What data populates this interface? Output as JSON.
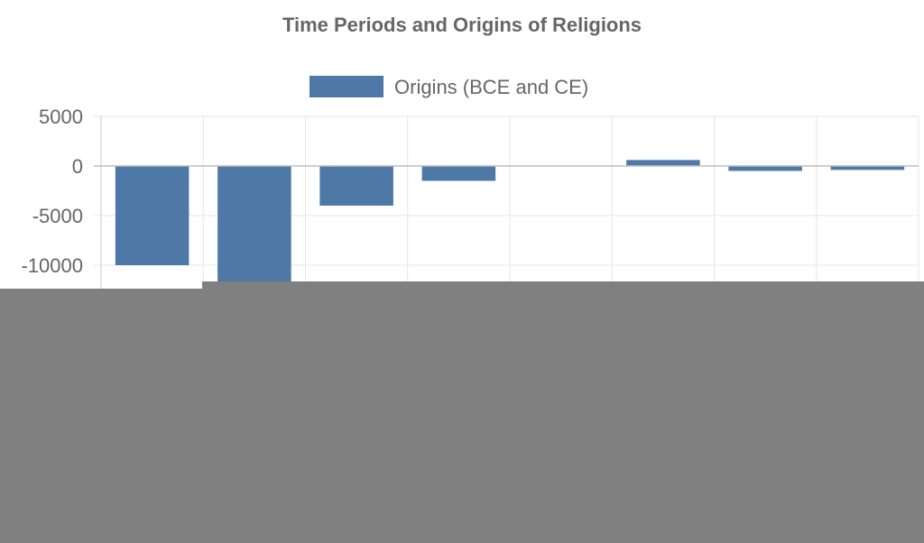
{
  "chart_data": {
    "type": "bar",
    "title": "Time Periods and Origins of Religions",
    "categories": [
      "",
      "",
      "",
      "",
      "",
      "",
      "",
      ""
    ],
    "series": [
      {
        "name": "Origins (BCE and CE)",
        "color": "#4e79a7",
        "values": [
          -10000,
          -12000,
          -4000,
          -1500,
          0,
          600,
          -500,
          -400
        ]
      }
    ],
    "y_ticks": [
      "5000",
      "0",
      "-5000",
      "-10000"
    ],
    "ylim": [
      -12000,
      5000
    ],
    "grid": true,
    "legend_position": "top"
  },
  "overlay": {
    "color": "#808080",
    "description": "lower portion of the chart is occluded by a solid gray block"
  }
}
